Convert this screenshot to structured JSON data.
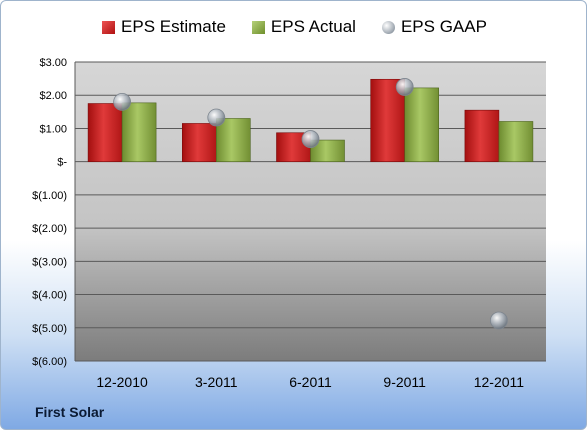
{
  "chart_data": {
    "type": "bar",
    "categories": [
      "12-2010",
      "3-2011",
      "6-2011",
      "9-2011",
      "12-2011"
    ],
    "series": [
      {
        "name": "EPS Estimate",
        "kind": "bar",
        "color": "#c41e1e",
        "values": [
          1.75,
          1.15,
          0.87,
          2.48,
          1.55
        ]
      },
      {
        "name": "EPS Actual",
        "kind": "bar",
        "color": "#8aad45",
        "values": [
          1.77,
          1.3,
          0.65,
          2.22,
          1.21
        ]
      },
      {
        "name": "EPS GAAP",
        "kind": "marker",
        "color": "#a0a8b2",
        "values": [
          1.8,
          1.33,
          0.68,
          2.25,
          -4.78
        ]
      }
    ],
    "y_ticks": [
      {
        "value": 3,
        "label": "$3.00"
      },
      {
        "value": 2,
        "label": "$2.00"
      },
      {
        "value": 1,
        "label": "$1.00"
      },
      {
        "value": 0,
        "label": "$-"
      },
      {
        "value": -1,
        "label": "$(1.00)"
      },
      {
        "value": -2,
        "label": "$(2.00)"
      },
      {
        "value": -3,
        "label": "$(3.00)"
      },
      {
        "value": -4,
        "label": "$(4.00)"
      },
      {
        "value": -5,
        "label": "$(5.00)"
      },
      {
        "value": -6,
        "label": "$(6.00)"
      }
    ],
    "ylim": [
      -6,
      3
    ],
    "grid": true,
    "legend_position": "top"
  },
  "company": "First Solar"
}
